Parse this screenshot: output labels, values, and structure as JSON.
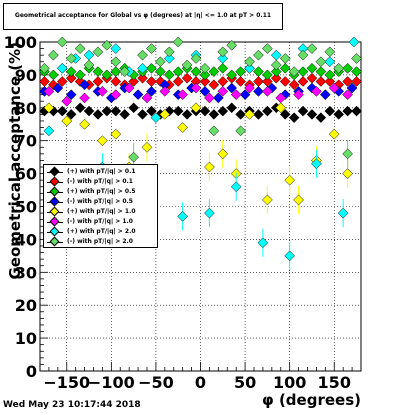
{
  "title": "Geometrical acceptance for Global vs φ (degrees) at |η| <= 1.0 at pT > 0.11",
  "timestamp": "Wed May 23 10:17:44 2018",
  "chart_data": {
    "type": "scatter",
    "title": "Geometrical acceptance for Global vs φ (degrees) at |η| <= 1.0 at pT > 0.11",
    "xlabel": "φ (degrees)",
    "ylabel": "Geometrical acceptance (%)",
    "xlim": [
      -180,
      180
    ],
    "ylim": [
      0,
      100
    ],
    "x_ticks": [
      -150,
      -100,
      -50,
      0,
      50,
      100,
      150
    ],
    "y_ticks": [
      0,
      10,
      20,
      30,
      40,
      50,
      60,
      70,
      80,
      90,
      100
    ],
    "grid": true,
    "legend_position": "left",
    "series": [
      {
        "name": "(+) with pT/|q| > 0.1",
        "color": "#000000",
        "x": [
          -175,
          -165,
          -155,
          -145,
          -135,
          -125,
          -115,
          -105,
          -95,
          -85,
          -75,
          -65,
          -55,
          -45,
          -35,
          -25,
          -15,
          -5,
          5,
          15,
          25,
          35,
          45,
          55,
          65,
          75,
          85,
          95,
          105,
          115,
          125,
          135,
          145,
          155,
          165,
          175
        ],
        "y": [
          79,
          79,
          79,
          78,
          80,
          79,
          78,
          79,
          79,
          78,
          80,
          78,
          79,
          78,
          79,
          79,
          78,
          79,
          79,
          78,
          79,
          80,
          78,
          79,
          78,
          79,
          80,
          78,
          77,
          79,
          78,
          77,
          79,
          78,
          79,
          79
        ]
      },
      {
        "name": "(-) with pT/|q| > 0.1",
        "color": "#ff0000",
        "x": [
          -175,
          -165,
          -155,
          -145,
          -135,
          -125,
          -115,
          -105,
          -95,
          -85,
          -75,
          -65,
          -55,
          -45,
          -35,
          -25,
          -15,
          -5,
          5,
          15,
          25,
          35,
          45,
          55,
          65,
          75,
          85,
          95,
          105,
          115,
          125,
          135,
          145,
          155,
          165,
          175
        ],
        "y": [
          88,
          87,
          88,
          89,
          88,
          87,
          88,
          89,
          88,
          87,
          88,
          89,
          88,
          88,
          87,
          88,
          89,
          88,
          88,
          87,
          88,
          89,
          88,
          87,
          88,
          88,
          89,
          88,
          87,
          88,
          89,
          88,
          88,
          87,
          88,
          88
        ]
      },
      {
        "name": "(+) with pT/|q| > 0.5",
        "color": "#00cc00",
        "x": [
          -175,
          -165,
          -155,
          -145,
          -135,
          -125,
          -115,
          -105,
          -95,
          -85,
          -75,
          -65,
          -55,
          -45,
          -35,
          -25,
          -15,
          -5,
          5,
          15,
          25,
          35,
          45,
          55,
          65,
          75,
          85,
          95,
          105,
          115,
          125,
          135,
          145,
          155,
          165,
          175
        ],
        "y": [
          91,
          90,
          92,
          91,
          90,
          92,
          91,
          90,
          91,
          92,
          90,
          91,
          92,
          91,
          90,
          91,
          92,
          91,
          90,
          91,
          92,
          90,
          91,
          92,
          91,
          90,
          91,
          92,
          90,
          91,
          92,
          91,
          90,
          91,
          92,
          91
        ]
      },
      {
        "name": "(-) with pT/|q| > 0.5",
        "color": "#0000ff",
        "x": [
          -175,
          -160,
          -145,
          -130,
          -115,
          -100,
          -85,
          -70,
          -55,
          -40,
          -25,
          -10,
          5,
          20,
          35,
          50,
          65,
          80,
          95,
          110,
          125,
          140,
          155,
          170
        ],
        "y": [
          85,
          86,
          84,
          87,
          85,
          83,
          86,
          84,
          85,
          87,
          84,
          86,
          85,
          83,
          86,
          84,
          85,
          86,
          84,
          85,
          86,
          84,
          85,
          86
        ]
      },
      {
        "name": "(+) with pT/|q| > 1.0",
        "color": "#ffff00",
        "x": [
          -170,
          -150,
          -130,
          -110,
          -95,
          -80,
          -60,
          -40,
          -20,
          -5,
          10,
          25,
          40,
          55,
          75,
          90,
          100,
          110,
          130,
          150,
          165
        ],
        "y": [
          80,
          76,
          75,
          70,
          72,
          62,
          68,
          78,
          74,
          80,
          62,
          66,
          60,
          78,
          52,
          80,
          58,
          52,
          64,
          72,
          60
        ]
      },
      {
        "name": "(-) with pT/|q| > 1.0",
        "color": "#ff00ff",
        "x": [
          -170,
          -150,
          -130,
          -110,
          -95,
          -80,
          -60,
          -40,
          -20,
          -5,
          10,
          25,
          40,
          55,
          75,
          90,
          110,
          130,
          150,
          165
        ],
        "y": [
          85,
          82,
          83,
          85,
          84,
          86,
          83,
          85,
          84,
          86,
          83,
          85,
          84,
          86,
          85,
          83,
          84,
          85,
          86,
          84
        ]
      },
      {
        "name": "(+) with pT/|q| > 2.0",
        "color": "#00ffff",
        "x": [
          -170,
          -155,
          -140,
          -125,
          -110,
          -95,
          -80,
          -65,
          -50,
          -35,
          -20,
          -5,
          10,
          25,
          40,
          55,
          70,
          85,
          100,
          115,
          130,
          145,
          160,
          172
        ],
        "y": [
          73,
          92,
          95,
          96,
          62,
          98,
          91,
          92,
          77,
          95,
          47,
          96,
          48,
          95,
          56,
          92,
          39,
          96,
          35,
          98,
          63,
          94,
          48,
          100
        ]
      },
      {
        "name": "(-) with pT/|q| > 2.0",
        "color": "#66dd66",
        "x": [
          -175,
          -165,
          -155,
          -145,
          -135,
          -125,
          -115,
          -105,
          -95,
          -85,
          -75,
          -65,
          -55,
          -45,
          -35,
          -25,
          -15,
          -5,
          5,
          15,
          25,
          35,
          45,
          55,
          65,
          75,
          85,
          95,
          105,
          115,
          125,
          135,
          145,
          155,
          165,
          175
        ],
        "y": [
          92,
          96,
          100,
          95,
          98,
          93,
          97,
          99,
          94,
          91,
          65,
          96,
          98,
          94,
          97,
          100,
          93,
          95,
          92,
          73,
          97,
          99,
          73,
          94,
          96,
          98,
          93,
          95,
          91,
          96,
          98,
          94,
          97,
          92,
          66,
          95
        ]
      }
    ]
  }
}
